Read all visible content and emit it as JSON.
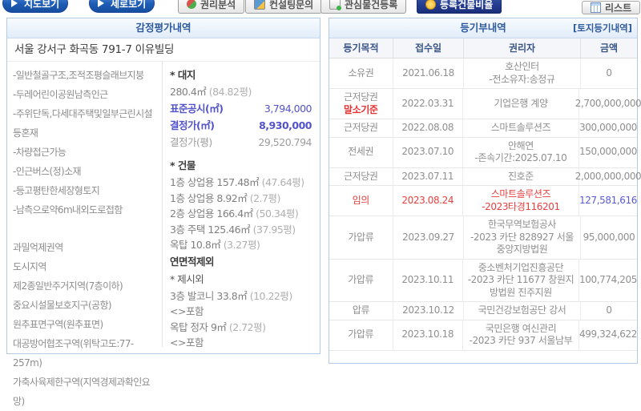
{
  "toolbar": {
    "buttons": [
      {
        "label": "지도보기"
      },
      {
        "label": "세로보기"
      },
      {
        "label": "권리분석"
      },
      {
        "label": "컨설팅문의"
      },
      {
        "label": "관심물건등록"
      },
      {
        "label": "등록건물비율"
      },
      {
        "label": "리스트"
      }
    ]
  },
  "appraisal": {
    "title": "감정평가내역",
    "address": "서울 강서구 화곡동 791-7 이유빌딩",
    "notes": [
      "-일반철골구조,조적조평슬래브지붕",
      "-두레어린이공원남측인근",
      "-주위단독,다세대주택및일부근린시설등혼재",
      "-차량접근가능",
      "-인근버스(정)소재",
      "-등고평탄한세장형토지",
      "-남측으로약6m내외도로접함"
    ],
    "zoning": [
      "과밀억제권역",
      "도시지역",
      "제2종일반주거지역(7층이하)",
      "중요시설물보호지구(공항)",
      "원추표면구역(원추표면)",
      "대공방어협조구역(위탁고도:77-257m)",
      "가축사육제한구역(지역경제과확인요망)"
    ],
    "land": {
      "heading": "* 대지",
      "area": "280.4㎡",
      "area_py": "(84.82평)",
      "rows": [
        {
          "label": "표준공시(㎡)",
          "value": "3,794,000",
          "cls": "kv-blue"
        },
        {
          "label": "결정가(㎡)",
          "value": "8,930,000",
          "cls": "kv-blueb"
        },
        {
          "label": "결정가(평)",
          "value": "29,520.794",
          "cls": "kv-gray"
        }
      ]
    },
    "building": {
      "heading": "* 건물",
      "lines": [
        {
          "text": "1층 상업용 157.48㎡",
          "py": "(47.64평)"
        },
        {
          "text": "1층 상업용 8.92㎡",
          "py": "(2.7평)"
        },
        {
          "text": "2층 상업용 166.4㎡",
          "py": "(50.34평)"
        },
        {
          "text": "3층 주택 125.46㎡",
          "py": "(37.95평)"
        },
        {
          "text": "옥탑 10.8㎡",
          "py": "(3.27평)"
        }
      ],
      "exclusion": "연면적제외"
    },
    "extra": {
      "heading": "* 제시외",
      "lines": [
        {
          "text": "3층 발코니 33.8㎡",
          "py": "(10.22평)"
        },
        {
          "text": "<>포함"
        },
        {
          "text": "옥탑 정자 9㎡",
          "py": "(2.72평)"
        },
        {
          "text": "<>포함"
        }
      ]
    }
  },
  "registry": {
    "title": "등기부내역",
    "link": "[토지등기내역]",
    "columns": [
      "등기목적",
      "접수일",
      "권리자",
      "금액"
    ],
    "rows": [
      {
        "purpose": [
          "소유권"
        ],
        "date": "2021.06.18",
        "holder": [
          "호산인터",
          "-전소유자:송정규"
        ],
        "amount": "0"
      },
      {
        "purpose": [
          "근저당권",
          "말소기준"
        ],
        "purpose_sub_cls": "red-bold",
        "date": "2022.03.31",
        "holder": [
          "기업은행 계양"
        ],
        "amount": "2,700,000,000"
      },
      {
        "purpose": [
          "근저당권"
        ],
        "date": "2022.08.08",
        "holder": [
          "스마트솔루션즈"
        ],
        "amount": "300,000,000"
      },
      {
        "purpose": [
          "전세권"
        ],
        "date": "2023.07.10",
        "holder": [
          "안해연",
          "-존속기간:2025.07.10"
        ],
        "amount": "150,000,000"
      },
      {
        "purpose": [
          "근저당권"
        ],
        "date": "2023.07.11",
        "holder": [
          "진호준"
        ],
        "amount": "2,000,000,000"
      },
      {
        "purpose": [
          "임의"
        ],
        "row_cls": "red",
        "amount_cls": "blue",
        "date": "2023.08.24",
        "holder": [
          "스마트솔루션즈",
          "-2023타경116201"
        ],
        "amount": "127,581,616"
      },
      {
        "purpose": [
          "가압류"
        ],
        "date": "2023.09.27",
        "holder": [
          "한국무역보험공사",
          "-2023 카단 828927 서울",
          "중앙지방법원"
        ],
        "amount": "95,000,000"
      },
      {
        "purpose": [
          "가압류"
        ],
        "date": "2023.10.11",
        "holder": [
          "중소벤처기업진흥공단",
          "-2023 카단 11677 창원지",
          "방법원 진주지원"
        ],
        "amount": "100,774,205"
      },
      {
        "purpose": [
          "압류"
        ],
        "date": "2023.10.12",
        "holder": [
          "국민건강보험공단 강서"
        ],
        "amount": "0"
      },
      {
        "purpose": [
          "가압류"
        ],
        "date": "2023.10.18",
        "holder": [
          "국민은행 여신관리",
          "-2023 카단 937 서울남부"
        ],
        "amount": "499,324,622"
      }
    ]
  },
  "colors": {
    "accent_blue": "#2f5a9e",
    "value_blue": "#5353cb",
    "alert_red": "#e84040",
    "panel_border": "#b5c9e2"
  }
}
